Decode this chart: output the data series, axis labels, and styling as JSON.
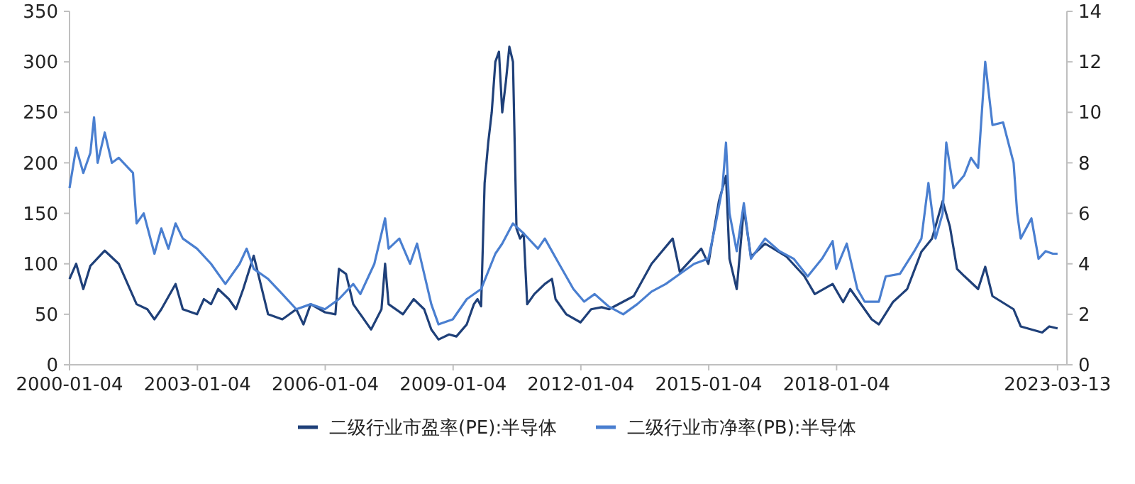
{
  "chart_data": {
    "type": "line",
    "xlim": [
      "2000-01-04",
      "2023-06"
    ],
    "xticks": [
      {
        "value": "2000-01-04",
        "label": "2000-01-04"
      },
      {
        "value": "2003-01-04",
        "label": "2003-01-04"
      },
      {
        "value": "2006-01-04",
        "label": "2006-01-04"
      },
      {
        "value": "2009-01-04",
        "label": "2009-01-04"
      },
      {
        "value": "2012-01-04",
        "label": "2012-01-04"
      },
      {
        "value": "2015-01-04",
        "label": "2015-01-04"
      },
      {
        "value": "2018-01-04",
        "label": "2018-01-04"
      },
      {
        "value": "2023-03-13",
        "label": "2023-03-13"
      }
    ],
    "ylim": [
      0,
      350
    ],
    "yticks": [
      0,
      50,
      100,
      150,
      200,
      250,
      300,
      350
    ],
    "y2lim": [
      0,
      14
    ],
    "y2ticks": [
      0,
      2,
      4,
      6,
      8,
      10,
      12,
      14
    ],
    "grid": false,
    "legend": "bottom",
    "marker": "none",
    "line_style": "solid",
    "series": [
      {
        "name": "二级行业市盈率(PE):半导体",
        "color": "#1f4079",
        "axis": "y",
        "x": [
          "2000-01-04",
          "2000-03",
          "2000-05",
          "2000-07",
          "2000-11",
          "2001-03",
          "2001-08",
          "2001-11",
          "2002-01",
          "2002-03",
          "2002-07",
          "2002-09",
          "2003-01",
          "2003-03",
          "2003-05",
          "2003-07",
          "2003-10",
          "2003-12",
          "2004-02",
          "2004-05",
          "2004-09",
          "2005-01",
          "2005-05",
          "2005-07",
          "2005-09",
          "2006-01",
          "2006-04",
          "2006-05",
          "2006-07",
          "2006-09",
          "2007-01",
          "2007-02",
          "2007-05",
          "2007-06",
          "2007-07",
          "2007-11",
          "2008-02",
          "2008-05",
          "2008-07",
          "2008-09",
          "2008-12",
          "2009-02",
          "2009-05",
          "2009-07",
          "2009-08",
          "2009-09",
          "2009-10",
          "2009-11",
          "2009-12",
          "2010-01",
          "2010-02",
          "2010-03",
          "2010-04",
          "2010-05",
          "2010-06",
          "2010-07",
          "2010-08",
          "2010-09",
          "2010-10",
          "2010-12",
          "2011-03",
          "2011-05",
          "2011-06",
          "2011-08",
          "2011-09",
          "2012-01",
          "2012-04",
          "2012-07",
          "2012-09",
          "2013-04",
          "2013-09",
          "2014-03",
          "2014-05",
          "2014-11",
          "2015-01",
          "2015-04",
          "2015-06",
          "2015-07",
          "2015-09",
          "2015-11",
          "2016-01",
          "2016-05",
          "2016-11",
          "2017-04",
          "2017-07",
          "2017-12",
          "2018-03",
          "2018-05",
          "2018-11",
          "2019-01",
          "2019-05",
          "2019-09",
          "2020-01",
          "2020-04",
          "2020-07",
          "2020-09",
          "2020-11",
          "2021-01",
          "2021-05",
          "2021-07",
          "2021-09",
          "2022-03",
          "2022-05",
          "2022-11",
          "2023-01",
          "2023-03-13"
        ],
        "values": [
          85,
          100,
          75,
          98,
          113,
          100,
          60,
          55,
          45,
          55,
          80,
          55,
          50,
          65,
          60,
          75,
          65,
          55,
          75,
          108,
          50,
          45,
          55,
          40,
          60,
          52,
          50,
          95,
          90,
          60,
          40,
          35,
          55,
          100,
          60,
          50,
          65,
          55,
          35,
          25,
          30,
          28,
          40,
          60,
          65,
          58,
          180,
          220,
          250,
          300,
          310,
          250,
          280,
          315,
          300,
          135,
          125,
          130,
          60,
          70,
          80,
          85,
          65,
          55,
          50,
          42,
          55,
          57,
          55,
          68,
          100,
          125,
          92,
          115,
          100,
          162,
          187,
          105,
          75,
          155,
          107,
          120,
          107,
          88,
          70,
          80,
          62,
          75,
          45,
          40,
          62,
          75,
          112,
          125,
          162,
          137,
          95,
          88,
          75,
          97,
          68,
          55,
          38,
          32,
          38,
          36
        ]
      },
      {
        "name": "二级行业市净率(PB):半导体",
        "color": "#4a7fd0",
        "axis": "y2",
        "x": [
          "2000-01-04",
          "2000-03",
          "2000-05",
          "2000-07",
          "2000-08",
          "2000-09",
          "2000-11",
          "2001-01",
          "2001-03",
          "2001-07",
          "2001-08",
          "2001-10",
          "2002-01",
          "2002-03",
          "2002-05",
          "2002-07",
          "2002-09",
          "2003-01",
          "2003-05",
          "2003-09",
          "2004-01",
          "2004-03",
          "2004-05",
          "2004-09",
          "2005-01",
          "2005-05",
          "2005-09",
          "2006-01",
          "2006-05",
          "2006-09",
          "2006-11",
          "2007-03",
          "2007-06",
          "2007-07",
          "2007-10",
          "2008-01",
          "2008-03",
          "2008-07",
          "2008-09",
          "2009-01",
          "2009-05",
          "2009-09",
          "2010-01",
          "2010-03",
          "2010-06",
          "2010-09",
          "2011-01",
          "2011-03",
          "2011-07",
          "2011-11",
          "2012-02",
          "2012-05",
          "2012-09",
          "2013-01",
          "2013-05",
          "2013-09",
          "2014-01",
          "2014-05",
          "2014-09",
          "2015-01",
          "2015-03",
          "2015-05",
          "2015-06",
          "2015-07",
          "2015-09",
          "2015-11",
          "2016-01",
          "2016-05",
          "2016-09",
          "2017-01",
          "2017-05",
          "2017-09",
          "2017-12",
          "2018-01",
          "2018-04",
          "2018-07",
          "2018-09",
          "2019-01",
          "2019-03",
          "2019-07",
          "2019-11",
          "2020-01",
          "2020-03",
          "2020-05",
          "2020-07",
          "2020-08",
          "2020-10",
          "2021-01",
          "2021-03",
          "2021-05",
          "2021-07",
          "2021-09",
          "2021-12",
          "2022-03",
          "2022-04",
          "2022-05",
          "2022-08",
          "2022-10",
          "2022-12",
          "2023-02",
          "2023-03-13"
        ],
        "values": [
          7.0,
          8.6,
          7.6,
          8.4,
          9.8,
          8.0,
          9.2,
          8.0,
          8.2,
          7.6,
          5.6,
          6.0,
          4.4,
          5.4,
          4.6,
          5.6,
          5.0,
          4.6,
          4.0,
          3.2,
          4.0,
          4.6,
          3.8,
          3.4,
          2.8,
          2.2,
          2.4,
          2.2,
          2.6,
          3.2,
          2.8,
          4.0,
          5.8,
          4.6,
          5.0,
          4.0,
          4.8,
          2.4,
          1.6,
          1.8,
          2.6,
          3.0,
          4.4,
          4.8,
          5.6,
          5.2,
          4.6,
          5.0,
          4.0,
          3.0,
          2.5,
          2.8,
          2.3,
          2.0,
          2.4,
          2.9,
          3.2,
          3.6,
          4.0,
          4.2,
          5.5,
          7.0,
          8.8,
          6.0,
          4.5,
          6.4,
          4.2,
          5.0,
          4.5,
          4.2,
          3.5,
          4.2,
          4.9,
          3.8,
          4.8,
          3.0,
          2.5,
          2.5,
          3.5,
          3.6,
          4.5,
          5.0,
          7.2,
          5.0,
          6.0,
          8.8,
          7.0,
          7.5,
          8.2,
          7.8,
          12.0,
          9.5,
          9.6,
          8.0,
          6.0,
          5.0,
          5.8,
          4.2,
          4.5,
          4.4,
          4.4
        ]
      }
    ]
  }
}
